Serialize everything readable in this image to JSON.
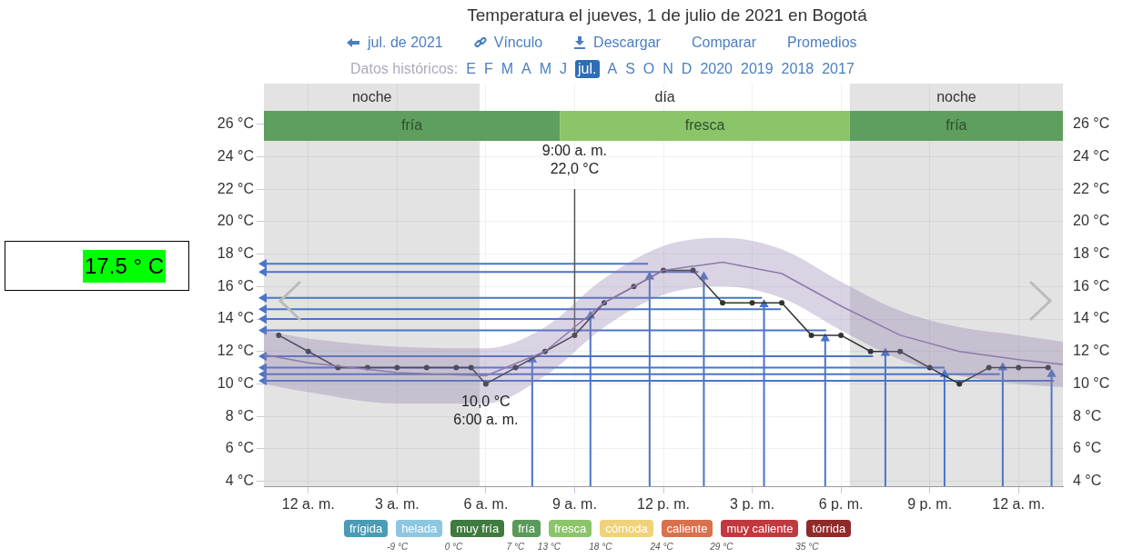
{
  "chart_data": {
    "type": "line",
    "title": "Temperatura el jueves, 1 de julio de 2021 en Bogotá",
    "annotations": [
      "17.5 ° C",
      "jul. de 2021",
      "Vínculo",
      "Descargar",
      "Comparar",
      "Promedios",
      "Datos históricos:",
      "E",
      "F",
      "M",
      "A",
      "M",
      "J",
      "jul.",
      "A",
      "S",
      "O",
      "N",
      "D",
      "2020",
      "2019",
      "2018",
      "2017",
      "frígida",
      "helada",
      "muy fría",
      "fría",
      "fresca",
      "cómoda",
      "caliente",
      "muy caliente",
      "tórrida",
      "-9 °C",
      "0 °C",
      "7 °C",
      "13 °C",
      "18 °C",
      "24 °C",
      "29 °C",
      "35 °C",
      {
        "text": "10,0 °C\n6:00 a. m.",
        "x": "2021-07-01T06:00",
        "y": 10
      },
      {
        "text": "9:00 a. m.\n22,0 °C",
        "x": "2021-07-01T09:00",
        "y": 22
      }
    ],
    "series": [
      {
        "color": "#8e7cab",
        "marker": "none",
        "x": [
          "2021-06-30T22:30",
          "2021-07-01T00:00",
          "2021-07-01T03:00",
          "2021-07-01T06:00",
          "2021-07-01T08:00",
          "2021-07-01T10:00",
          "2021-07-01T12:00",
          "2021-07-01T14:00",
          "2021-07-01T16:00",
          "2021-07-01T18:00",
          "2021-07-01T20:00",
          "2021-07-01T22:00",
          "2021-07-02T00:00",
          "2021-07-02T01:30"
        ],
        "values": [
          11.8,
          11.3,
          10.7,
          10.5,
          12,
          15,
          17,
          17.5,
          16.8,
          14.8,
          13,
          12,
          11.5,
          11.2
        ],
        "lower": [
          10,
          9.5,
          8.8,
          8.8,
          10.5,
          13.5,
          15.5,
          16,
          15.3,
          13.3,
          11.5,
          10.5,
          10,
          9.8
        ],
        "upper": [
          13.3,
          12.8,
          12.3,
          12.2,
          13.5,
          16.5,
          18.5,
          19,
          18.3,
          16.3,
          14.5,
          13.5,
          13,
          12.6
        ]
      },
      {
        "color": "#333333",
        "marker": "circle",
        "x": [
          "2021-06-30T23:00",
          "2021-07-01T00:00",
          "2021-07-01T01:00",
          "2021-07-01T02:00",
          "2021-07-01T03:00",
          "2021-07-01T04:00",
          "2021-07-01T05:00",
          "2021-07-01T05:30",
          "2021-07-01T06:00",
          "2021-07-01T07:00",
          "2021-07-01T08:00",
          "2021-07-01T09:00",
          "2021-07-01T10:00",
          "2021-07-01T11:00",
          "2021-07-01T12:00",
          "2021-07-01T13:00",
          "2021-07-01T14:00",
          "2021-07-01T15:00",
          "2021-07-01T16:00",
          "2021-07-01T17:00",
          "2021-07-01T18:00",
          "2021-07-01T19:00",
          "2021-07-01T20:00",
          "2021-07-01T21:00",
          "2021-07-01T22:00",
          "2021-07-01T23:00",
          "2021-07-02T00:00",
          "2021-07-02T01:00"
        ],
        "values": [
          13,
          12,
          11,
          11,
          11,
          11,
          11,
          11,
          10,
          11,
          12,
          13,
          15,
          16,
          17,
          17,
          15,
          15,
          15,
          13,
          13,
          12,
          12,
          11,
          10,
          11,
          11,
          11
        ]
      },
      {
        "color": "#555555",
        "marker": "none",
        "x": [
          "2021-07-01T09:00",
          "2021-07-01T09:00"
        ],
        "values": [
          13,
          22
        ]
      },
      {
        "color": "#4a74c9",
        "marker": "triangle",
        "x": [
          "2021-07-01T11:29",
          "2021-06-30T22:30"
        ],
        "values": [
          17.4,
          17.4
        ]
      },
      {
        "color": "#4a74c9",
        "marker": "triangle",
        "x": [
          "2021-07-01T13:11",
          "2021-06-30T22:30"
        ],
        "values": [
          16.9,
          16.9
        ]
      },
      {
        "color": "#4a74c9",
        "marker": "triangle",
        "x": [
          "2021-07-01T15:20",
          "2021-06-30T22:30"
        ],
        "values": [
          15.3,
          15.3
        ]
      },
      {
        "color": "#4a74c9",
        "marker": "triangle",
        "x": [
          "2021-07-01T15:58",
          "2021-06-30T22:30"
        ],
        "values": [
          14.6,
          14.6
        ]
      },
      {
        "color": "#4a74c9",
        "marker": "triangle",
        "x": [
          "2021-07-01T09:29",
          "2021-06-30T22:30"
        ],
        "values": [
          14,
          14
        ]
      },
      {
        "color": "#4a74c9",
        "marker": "triangle",
        "x": [
          "2021-07-01T17:30",
          "2021-06-30T22:30"
        ],
        "values": [
          13.3,
          13.3
        ]
      },
      {
        "color": "#4a74c9",
        "marker": "triangle",
        "x": [
          "2021-07-01T19:05",
          "2021-06-30T22:30"
        ],
        "values": [
          11.7,
          11.7
        ]
      },
      {
        "color": "#4a74c9",
        "marker": "triangle",
        "x": [
          "2021-07-01T21:30",
          "2021-06-30T22:30"
        ],
        "values": [
          11,
          11
        ]
      },
      {
        "color": "#4a74c9",
        "marker": "triangle",
        "x": [
          "2021-07-01T23:22",
          "2021-06-30T22:30"
        ],
        "values": [
          10.6,
          10.6
        ]
      },
      {
        "color": "#4a74c9",
        "marker": "triangle",
        "x": [
          "2021-07-02T01:12",
          "2021-06-30T22:30"
        ],
        "values": [
          10.2,
          10.2
        ]
      },
      {
        "color": "#4a74c9",
        "marker": "triangle",
        "x": [
          "2021-07-01T07:34",
          "2021-07-01T07:34"
        ],
        "values": [
          3.7,
          11.5
        ]
      },
      {
        "color": "#4a74c9",
        "marker": "triangle",
        "x": [
          "2021-07-01T09:32",
          "2021-07-01T09:32"
        ],
        "values": [
          3.7,
          14.2
        ]
      },
      {
        "color": "#4a74c9",
        "marker": "triangle",
        "x": [
          "2021-07-01T11:32",
          "2021-07-01T11:32"
        ],
        "values": [
          3.7,
          16.6
        ]
      },
      {
        "color": "#4a74c9",
        "marker": "triangle",
        "x": [
          "2021-07-01T13:22",
          "2021-07-01T13:22"
        ],
        "values": [
          3.7,
          16.6
        ]
      },
      {
        "color": "#4a74c9",
        "marker": "triangle",
        "x": [
          "2021-07-01T15:24",
          "2021-07-01T15:24"
        ],
        "values": [
          3.7,
          14.9
        ]
      },
      {
        "color": "#4a74c9",
        "marker": "triangle",
        "x": [
          "2021-07-01T17:28",
          "2021-07-01T17:28"
        ],
        "values": [
          3.7,
          12.8
        ]
      },
      {
        "color": "#4a74c9",
        "marker": "triangle",
        "x": [
          "2021-07-01T19:30",
          "2021-07-01T19:30"
        ],
        "values": [
          3.7,
          11.9
        ]
      },
      {
        "color": "#4a74c9",
        "marker": "triangle",
        "x": [
          "2021-07-01T21:30",
          "2021-07-01T21:30"
        ],
        "values": [
          3.7,
          10.6
        ]
      },
      {
        "color": "#4a74c9",
        "marker": "triangle",
        "x": [
          "2021-07-01T23:28",
          "2021-07-01T23:28"
        ],
        "values": [
          3.7,
          11
        ]
      },
      {
        "color": "#4a74c9",
        "marker": "triangle",
        "x": [
          "2021-07-02T01:07",
          "2021-07-02T01:07"
        ],
        "values": [
          3.7,
          10.6
        ]
      }
    ],
    "bands": [
      {
        "axis": "x",
        "from": "2021-06-30T22:30",
        "to": "2021-07-01T05:48",
        "label": "noche",
        "color": "#d9d9d9"
      },
      {
        "axis": "x",
        "from": "2021-07-01T05:48",
        "to": "2021-07-01T18:18",
        "label": "día",
        "color": "#ffffff"
      },
      {
        "axis": "x",
        "from": "2021-07-01T18:18",
        "to": "2021-07-02T01:30",
        "label": "noche",
        "color": "#d9d9d9"
      },
      {
        "axis": "x",
        "from": "2021-06-30T22:30",
        "to": "2021-07-01T08:30",
        "label": "fría",
        "color": "#5e9e5e"
      },
      {
        "axis": "x",
        "from": "2021-07-01T08:30",
        "to": "2021-07-01T18:18",
        "label": "fresca",
        "color": "#8cc46a"
      },
      {
        "axis": "x",
        "from": "2021-07-01T18:18",
        "to": "2021-07-02T01:30",
        "label": "fría",
        "color": "#5e9e5e"
      }
    ],
    "xlim": [
      "2021-06-30T22:30",
      "2021-07-02T01:30"
    ],
    "xticks": [
      {
        "value": "2021-07-01T00:00",
        "label": "12 a. m."
      },
      {
        "value": "2021-07-01T03:00",
        "label": "3 a. m."
      },
      {
        "value": "2021-07-01T06:00",
        "label": "6 a. m."
      },
      {
        "value": "2021-07-01T09:00",
        "label": "9 a. m."
      },
      {
        "value": "2021-07-01T12:00",
        "label": "12 p. m."
      },
      {
        "value": "2021-07-01T15:00",
        "label": "3 p. m."
      },
      {
        "value": "2021-07-01T18:00",
        "label": "6 p. m."
      },
      {
        "value": "2021-07-01T21:00",
        "label": "9 p. m."
      },
      {
        "value": "2021-07-02T00:00",
        "label": "12 a. m."
      }
    ],
    "ylim": [
      3.7,
      28.5
    ],
    "y2lim": [
      3.7,
      28.5
    ],
    "yticks": [
      {
        "value": 4,
        "label": "4 °C"
      },
      {
        "value": 6,
        "label": "6 °C"
      },
      {
        "value": 8,
        "label": "8 °C"
      },
      {
        "value": 10,
        "label": "10 °C"
      },
      {
        "value": 12,
        "label": "12 °C"
      },
      {
        "value": 14,
        "label": "14 °C"
      },
      {
        "value": 16,
        "label": "16 °C"
      },
      {
        "value": 18,
        "label": "18 °C"
      },
      {
        "value": 20,
        "label": "20 °C"
      },
      {
        "value": 22,
        "label": "22 °C"
      },
      {
        "value": 24,
        "label": "24 °C"
      },
      {
        "value": 26,
        "label": "26 °C"
      }
    ],
    "y2ticks": [
      {
        "value": 4,
        "label": "4 °C"
      },
      {
        "value": 6,
        "label": "6 °C"
      },
      {
        "value": 8,
        "label": "8 °C"
      },
      {
        "value": 10,
        "label": "10 °C"
      },
      {
        "value": 12,
        "label": "12 °C"
      },
      {
        "value": 14,
        "label": "14 °C"
      },
      {
        "value": 16,
        "label": "16 °C"
      },
      {
        "value": 18,
        "label": "18 °C"
      },
      {
        "value": 20,
        "label": "20 °C"
      },
      {
        "value": 22,
        "label": "22 °C"
      },
      {
        "value": 24,
        "label": "24 °C"
      },
      {
        "value": 26,
        "label": "26 °C"
      }
    ],
    "grid": true,
    "legend": false
  }
}
